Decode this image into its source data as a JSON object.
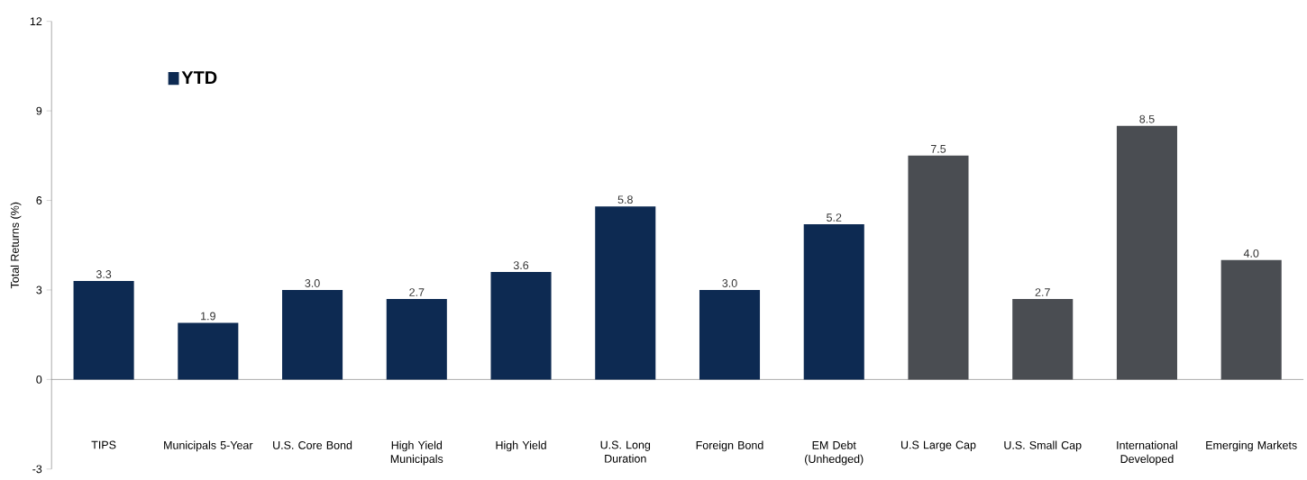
{
  "chart_data": {
    "type": "bar",
    "ylabel": "Total Returns (%)",
    "categories": [
      "TIPS",
      "Municipals 5-Year",
      "U.S. Core Bond",
      "High Yield Municipals",
      "High Yield",
      "U.S. Long Duration",
      "Foreign Bond",
      "EM Debt (Unhedged)",
      "U.S Large Cap",
      "U.S. Small Cap",
      "International Developed",
      "Emerging Markets"
    ],
    "series": [
      {
        "name": "YTD",
        "color": "#0d2a52",
        "values": [
          3.3,
          1.9,
          3.0,
          2.7,
          3.6,
          5.8,
          3.0,
          5.2,
          7.5,
          2.7,
          8.5,
          4.0
        ],
        "value_labels": [
          "3.3",
          "1.9",
          "3.0",
          "2.7",
          "3.6",
          "5.8",
          "3.0",
          "5.2",
          "7.5",
          "2.7",
          "8.5",
          "4.0"
        ],
        "colors": [
          "#0d2a52",
          "#0d2a52",
          "#0d2a52",
          "#0d2a52",
          "#0d2a52",
          "#0d2a52",
          "#0d2a52",
          "#0d2a52",
          "#4a4d52",
          "#4a4d52",
          "#4a4d52",
          "#4a4d52"
        ]
      }
    ],
    "ylim": [
      -3,
      12
    ],
    "yticks": [
      -3,
      0,
      3,
      6,
      9,
      12
    ],
    "legend": "top left"
  }
}
